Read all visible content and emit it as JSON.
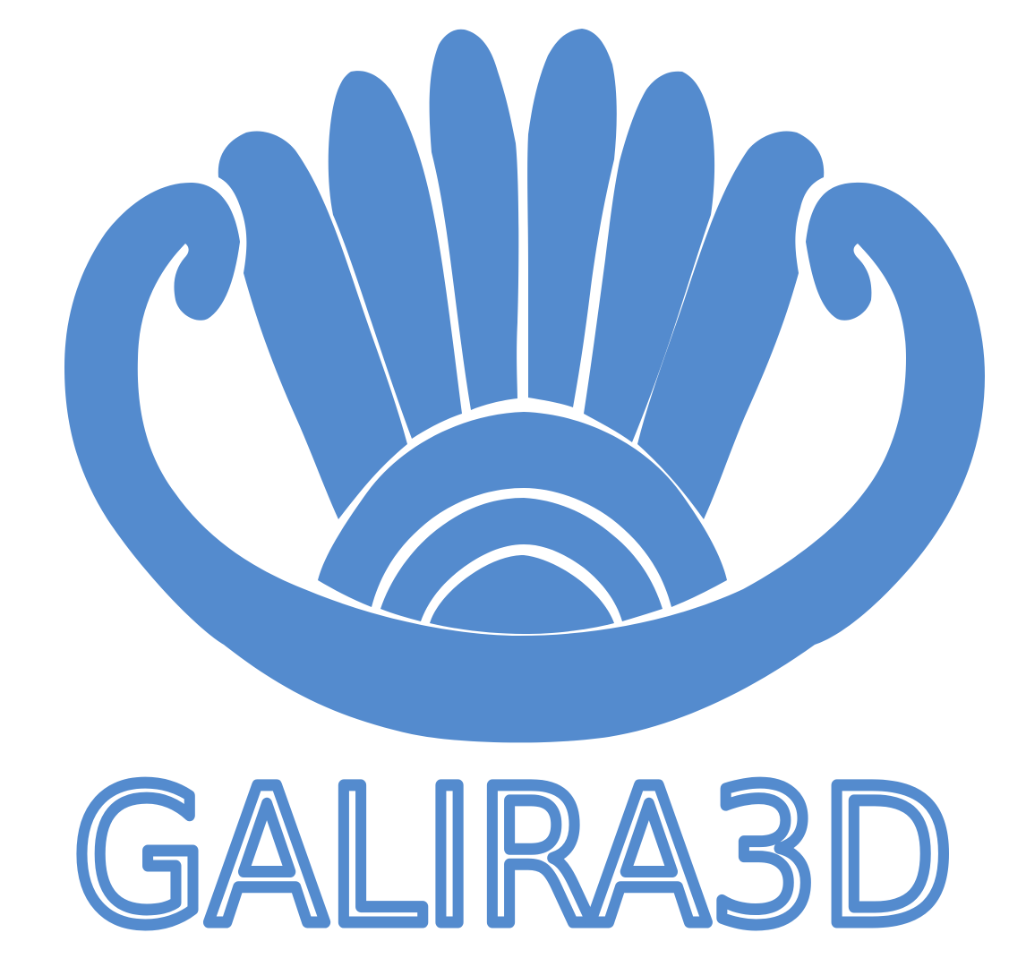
{
  "logo": {
    "name": "logo",
    "wordmark": "GALIRA3D",
    "primary_color": "#548BCE",
    "background_color": "#FFFFFF",
    "emblem_icon": "crown-feathers-emblem"
  }
}
